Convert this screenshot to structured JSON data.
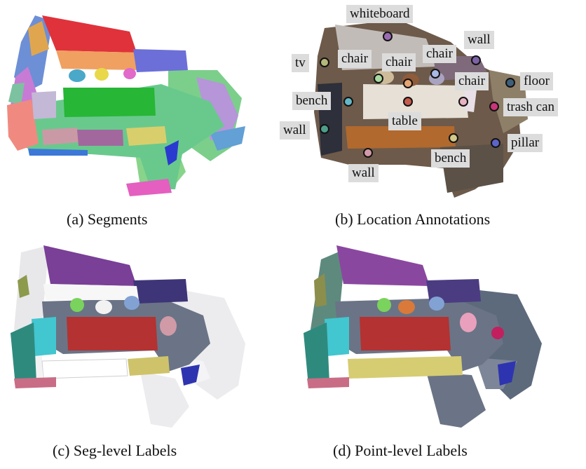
{
  "captions": {
    "a": "(a)  Segments",
    "b": "(b)  Location Annotations",
    "c": "(c)  Seg-level Labels",
    "d": "(d)  Point-level Labels"
  },
  "annotations": [
    {
      "label": "whiteboard",
      "color": "#9a6bb0"
    },
    {
      "label": "wall",
      "color": "#7d62a6"
    },
    {
      "label": "tv",
      "color": "#b5b87a"
    },
    {
      "label": "chair",
      "color": "#a7d9a0"
    },
    {
      "label": "chair",
      "color": "#e7a572"
    },
    {
      "label": "chair",
      "color": "#aab8e6"
    },
    {
      "label": "chair",
      "color": "#e9b2c2"
    },
    {
      "label": "floor",
      "color": "#3e5f7a"
    },
    {
      "label": "bench",
      "color": "#63b8c8"
    },
    {
      "label": "table",
      "color": "#c85a4c"
    },
    {
      "label": "trash can",
      "color": "#c8357a"
    },
    {
      "label": "wall",
      "color": "#4e9e8c"
    },
    {
      "label": "bench",
      "color": "#d2c888"
    },
    {
      "label": "pillar",
      "color": "#5d64c8"
    },
    {
      "label": "wall",
      "color": "#d29aa8"
    }
  ]
}
